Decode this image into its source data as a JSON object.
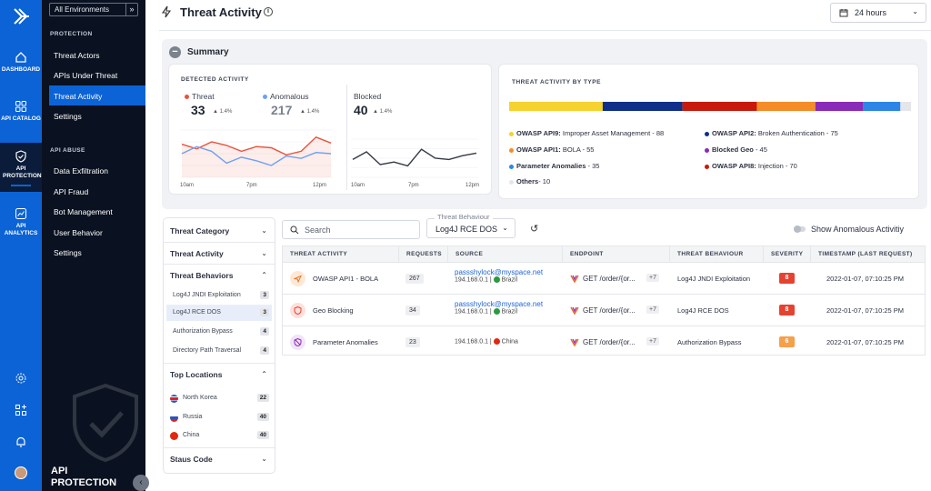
{
  "rail": {
    "items": [
      {
        "label": "DASHBOARD"
      },
      {
        "label": "API CATALOG"
      },
      {
        "label": "API PROTECTION"
      },
      {
        "label": "API ANALYTICS"
      }
    ]
  },
  "nav": {
    "environment": "All Environments",
    "section_protection": "PROTECTION",
    "protection_items": [
      "Threat Actors",
      "APIs Under Threat",
      "Threat Activity",
      "Settings"
    ],
    "section_abuse": "API ABUSE",
    "abuse_items": [
      "Data Exfiltration",
      "API Fraud",
      "Bot Management",
      "User Behavior",
      "Settings"
    ],
    "footer": "API PROTECTION"
  },
  "header": {
    "title": "Threat Activity",
    "range": "24 hours"
  },
  "summary": {
    "title": "Summary",
    "detected_caption": "DETECTED ACTIVITY",
    "threat": {
      "label": "Threat",
      "value": "33",
      "delta": "1.4%",
      "color": "#e8533f"
    },
    "anomalous": {
      "label": "Anomalous",
      "value": "217",
      "delta": "1.4%",
      "color": "#6ea1f2"
    },
    "blocked": {
      "label": "Blocked",
      "value": "40",
      "delta": "1.4%"
    },
    "x_ticks_left": [
      "10am",
      "7pm",
      "12pm"
    ],
    "x_ticks_right": [
      "10am",
      "7pm",
      "12pm"
    ],
    "type_caption": "THREAT ACTIVITY BY TYPE",
    "types": [
      {
        "name": "OWASP API9:",
        "detail": "Improper Asset Management",
        "count": "88",
        "color": "#f5d22f"
      },
      {
        "name": "OWASP API2:",
        "detail": "Broken Authentication",
        "count": "75",
        "color": "#0f2f8a"
      },
      {
        "name": "OWASP API1:",
        "detail": "BOLA",
        "count": "55",
        "color": "#f48c28"
      },
      {
        "name": "Blocked Geo",
        "detail": "",
        "count": "45",
        "color": "#8a2ab8"
      },
      {
        "name": "Parameter Anomalies",
        "detail": "",
        "count": "35",
        "color": "#2d86e6"
      },
      {
        "name": "OWASP API8:",
        "detail": "Injection",
        "count": "70",
        "color": "#c8190c"
      },
      {
        "name": "Others",
        "detail": "",
        "count": "10",
        "color": "#e4e6ea"
      }
    ]
  },
  "filters": {
    "threat_category": "Threat Category",
    "threat_activity": "Threat Activity",
    "threat_behaviors": "Threat Behaviors",
    "behaviors": [
      {
        "label": "Log4J JNDI Exploitation",
        "count": "3"
      },
      {
        "label": "Log4J RCE DOS",
        "count": "3"
      },
      {
        "label": "Authorization Bypass",
        "count": "4"
      },
      {
        "label": "Directory Path Traversal",
        "count": "4"
      }
    ],
    "top_locations": "Top Locations",
    "locations": [
      {
        "label": "North Korea",
        "count": "22"
      },
      {
        "label": "Russia",
        "count": "40"
      },
      {
        "label": "China",
        "count": "40"
      }
    ],
    "status_code": "Staus Code"
  },
  "toolbar": {
    "search_placeholder": "Search",
    "behaviour_legend": "Threat Behaviour",
    "behaviour_value": "Log4J RCE DOS",
    "toggle_label": "Show Anomalous Activitiy"
  },
  "table": {
    "headers": [
      "THREAT ACTIVITY",
      "REQUESTS",
      "SOURCE",
      "ENDPOINT",
      "THREAT BEHAVIOUR",
      "SEVERITY",
      "TIMESTAMP (LAST REQUEST)"
    ],
    "rows": [
      {
        "activity": "OWASP API1 - BOLA",
        "requests": "267",
        "email": "passshylock@myspace.net",
        "ip": "194.168.0.1 |",
        "country": "Brazil",
        "endpoint": "GET /order/{or...",
        "more": "+7",
        "behaviour": "Log4J JNDI Exploitation",
        "severity": "8",
        "sev_color": "#e5432f",
        "timestamp": "2022-01-07, 07:10:25 PM"
      },
      {
        "activity": "Geo Blocking",
        "requests": "34",
        "email": "passshylock@myspace.net",
        "ip": "194.168.0.1 |",
        "country": "Brazil",
        "endpoint": "GET /order/{or...",
        "more": "+7",
        "behaviour": "Log4J RCE DOS",
        "severity": "8",
        "sev_color": "#e5432f",
        "timestamp": "2022-01-07, 07:10:25 PM"
      },
      {
        "activity": "Parameter Anomalies",
        "requests": "23",
        "email": "",
        "ip": "194.168.0.1 |",
        "country": "China",
        "endpoint": "GET /order/{or...",
        "more": "+7",
        "behaviour": "Authorization Bypass",
        "severity": "6",
        "sev_color": "#f5a04a",
        "timestamp": "2022-01-07, 07:10:25 PM"
      }
    ]
  },
  "chart_data": [
    {
      "type": "line",
      "categories": [
        "10am",
        "",
        "",
        "",
        "",
        "",
        "7pm",
        "",
        "",
        "",
        "12pm"
      ],
      "series": [
        {
          "name": "Threat",
          "values": [
            28,
            24,
            30,
            27,
            22,
            26,
            25,
            19,
            22,
            34,
            29
          ]
        },
        {
          "name": "Anomalous",
          "values": [
            20,
            26,
            22,
            12,
            17,
            14,
            10,
            18,
            16,
            21,
            20
          ]
        }
      ],
      "ylim": [
        0,
        40
      ]
    },
    {
      "type": "line",
      "categories": [
        "10am",
        "",
        "",
        "",
        "",
        "",
        "7pm",
        "",
        "",
        "12pm"
      ],
      "series": [
        {
          "name": "Blocked",
          "values": [
            14,
            20,
            10,
            12,
            9,
            22,
            15,
            14,
            17,
            19
          ]
        }
      ],
      "ylim": [
        0,
        30
      ]
    },
    {
      "type": "bar",
      "stacked": true,
      "categories": [
        "OWASP API9",
        "OWASP API2",
        "OWASP API1",
        "Blocked Geo",
        "Parameter Anomalies",
        "OWASP API8",
        "Others"
      ],
      "values": [
        88,
        75,
        55,
        45,
        35,
        70,
        10
      ]
    }
  ]
}
